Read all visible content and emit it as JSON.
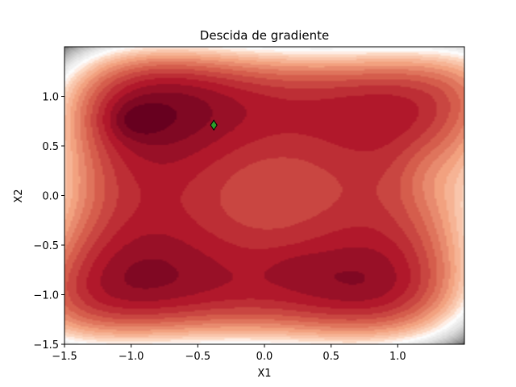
{
  "chart_data": {
    "type": "contour",
    "title": "Descida de gradiente",
    "xlabel": "X1",
    "ylabel": "X2",
    "xlim": [
      -1.5,
      1.5
    ],
    "ylim": [
      -1.5,
      1.5
    ],
    "x_ticks": [
      -1.5,
      -1.0,
      -0.5,
      0.0,
      0.5,
      1.0
    ],
    "x_tick_labels": [
      "−1.5",
      "−1.0",
      "−0.5",
      "0.0",
      "0.5",
      "1.0"
    ],
    "y_ticks": [
      -1.5,
      -1.0,
      -0.5,
      0.0,
      0.5,
      1.0
    ],
    "y_tick_labels": [
      "−1.5",
      "−1.0",
      "−0.5",
      "0.0",
      "0.5",
      "1.0"
    ],
    "colormap": "RdGy (dark red = low, white/gray = high)",
    "colors": {
      "darkest_red": "#67001f",
      "dark_red": "#b2182b",
      "red": "#d6604d",
      "salmon": "#f4a582",
      "white": "#ffffff",
      "gray": "#bababa",
      "dark_gray": "#4d4d4d"
    },
    "marker": {
      "shape": "diamond",
      "x": -0.38,
      "y": 0.71,
      "color": "#2ca02c",
      "edge": "#000000"
    },
    "grid": false,
    "legend": "none"
  }
}
